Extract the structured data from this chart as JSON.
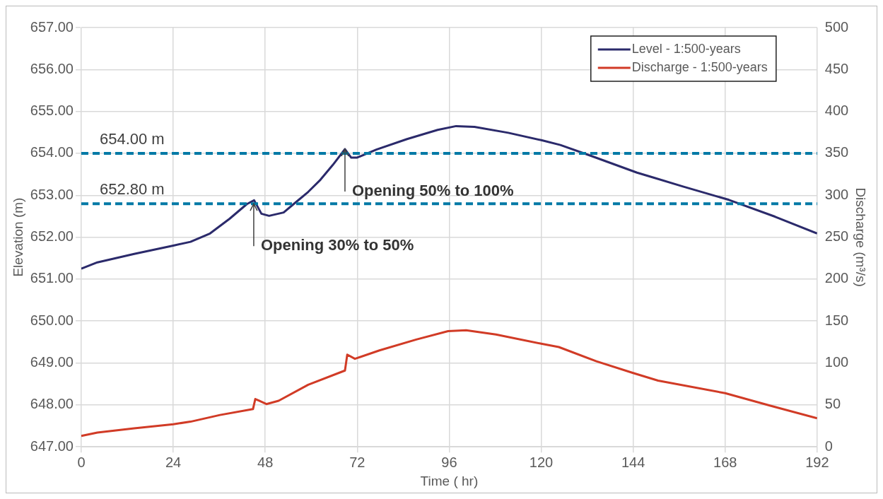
{
  "chart_data": {
    "type": "line",
    "xlabel": "Time ( hr)",
    "ylabel": "Elevation (m)",
    "y2label": "Discharge (m³/s)",
    "xlim": [
      0,
      192
    ],
    "xticks": [
      0,
      24,
      48,
      72,
      96,
      120,
      144,
      168,
      192
    ],
    "ylim": [
      647,
      657
    ],
    "yticks": [
      {
        "value": 647,
        "label": "647.00"
      },
      {
        "value": 648,
        "label": "648.00"
      },
      {
        "value": 649,
        "label": "649.00"
      },
      {
        "value": 650,
        "label": "650.00"
      },
      {
        "value": 651,
        "label": "651.00"
      },
      {
        "value": 652,
        "label": "652.00"
      },
      {
        "value": 653,
        "label": "653.00"
      },
      {
        "value": 654,
        "label": "654.00"
      },
      {
        "value": 655,
        "label": "655.00"
      },
      {
        "value": 656,
        "label": "656.00"
      },
      {
        "value": 657,
        "label": "657.00"
      }
    ],
    "y2lim": [
      0,
      500
    ],
    "y2ticks": [
      0,
      50,
      100,
      150,
      200,
      250,
      300,
      350,
      400,
      450,
      500
    ],
    "grid": true,
    "legend": "top right",
    "marker": "none",
    "line_style": "solid",
    "series": [
      {
        "name": "Level - 1:500-years",
        "color": "#2b2a6b",
        "x": [
          0,
          4.2,
          13.8,
          24,
          28.5,
          33.6,
          38.7,
          43.2,
          45.1,
          47,
          49,
          52.8,
          55.4,
          59.2,
          62.4,
          65.6,
          68.8,
          70.4,
          72,
          77,
          85,
          93,
          97.8,
          102.6,
          111.4,
          120.2,
          125,
          133,
          145,
          149,
          157,
          169,
          181,
          192
        ],
        "values": [
          651.25,
          651.4,
          651.6,
          651.8,
          651.89,
          652.09,
          652.44,
          652.79,
          652.88,
          652.56,
          652.51,
          652.59,
          652.79,
          653.08,
          653.37,
          653.72,
          654.1,
          653.9,
          653.9,
          654.09,
          654.34,
          654.56,
          654.65,
          654.63,
          654.49,
          654.31,
          654.2,
          653.94,
          653.54,
          653.43,
          653.21,
          652.89,
          652.49,
          652.09
        ]
      },
      {
        "name": "Discharge - 1:500-years",
        "color": "#d13b26",
        "axis": "y2",
        "x": [
          0,
          4.2,
          13.8,
          24,
          28.5,
          36.2,
          44.8,
          45.4,
          46.4,
          48.3,
          51.5,
          59.2,
          68.8,
          69.4,
          71.4,
          77.8,
          87.4,
          95.7,
          100.4,
          108.2,
          120,
          124.6,
          134.4,
          144,
          150.5,
          168,
          179.8,
          192
        ],
        "values": [
          13,
          17,
          22,
          27,
          30,
          38,
          45,
          57,
          55,
          51,
          55,
          74,
          91,
          110,
          105,
          115,
          128,
          138,
          139,
          134,
          123,
          119,
          102,
          88,
          79,
          64,
          49,
          34
        ]
      }
    ],
    "ref_lines": [
      {
        "axis": "y",
        "value": 654,
        "label": "654.00 m",
        "color": "#0079a6",
        "line_style": "dashed"
      },
      {
        "axis": "y",
        "value": 652.8,
        "label": "652.80 m",
        "color": "#0079a6",
        "line_style": "dashed"
      }
    ],
    "annotations": [
      {
        "text": "Opening 30% to 50%",
        "x": 45,
        "y": 652.8
      },
      {
        "text": "Opening 50% to 100%",
        "x": 68.8,
        "y": 654.1
      }
    ]
  }
}
